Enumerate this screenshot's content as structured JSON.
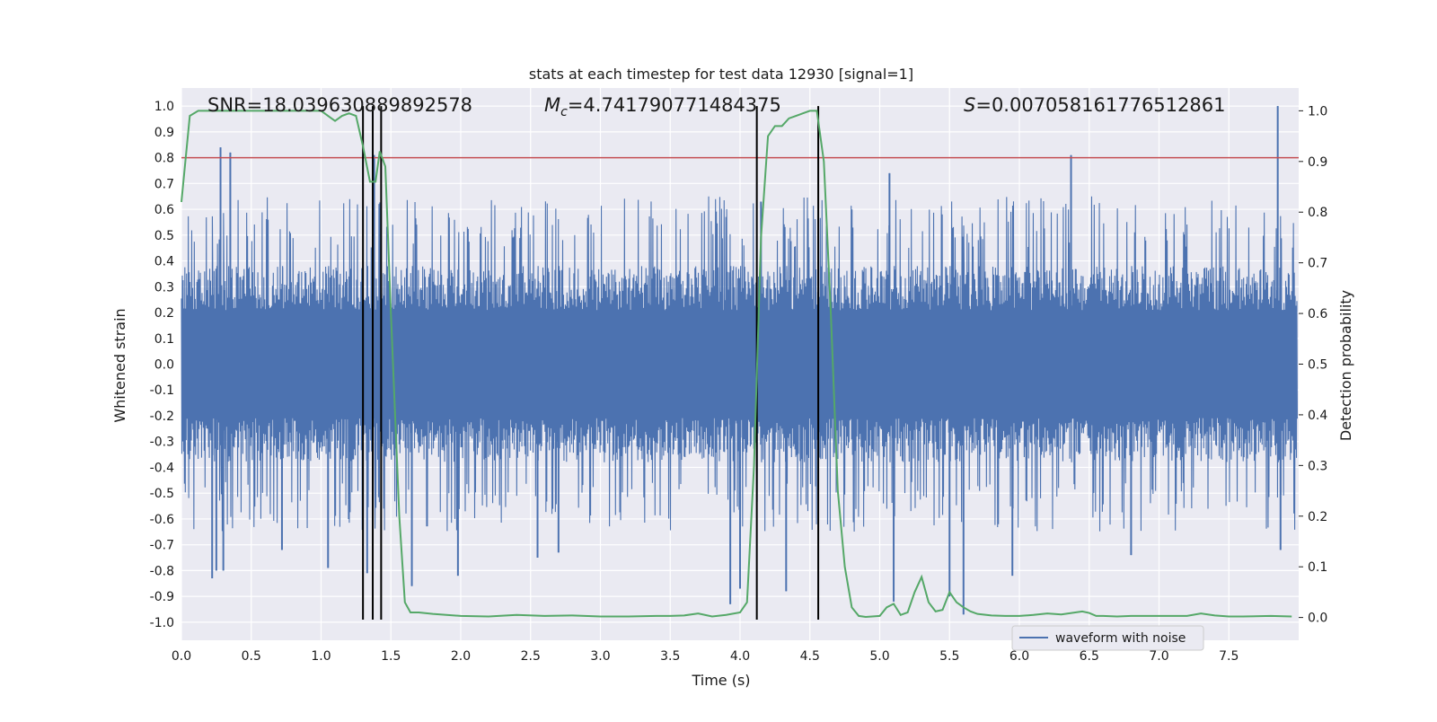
{
  "chart_data": {
    "type": "line",
    "title": "stats at each timestep for test data 12930 [signal=1]",
    "xlabel": "Time (s)",
    "ylabel_left": "Whitened strain",
    "ylabel_right": "Detection probability",
    "xlim": [
      0.0,
      8.0
    ],
    "ylim_left": [
      -1.07,
      1.07
    ],
    "ylim_right": [
      -0.045,
      1.045
    ],
    "xticks": [
      0.0,
      0.5,
      1.0,
      1.5,
      2.0,
      2.5,
      3.0,
      3.5,
      4.0,
      4.5,
      5.0,
      5.5,
      6.0,
      6.5,
      7.0,
      7.5
    ],
    "xtick_labels": [
      "0.0",
      "0.5",
      "1.0",
      "1.5",
      "2.0",
      "2.5",
      "3.0",
      "3.5",
      "4.0",
      "4.5",
      "5.0",
      "5.5",
      "6.0",
      "6.5",
      "7.0",
      "7.5"
    ],
    "yticks_left": [
      1.0,
      0.9,
      0.8,
      0.7,
      0.6,
      0.5,
      0.4,
      0.3,
      0.2,
      0.1,
      0.0,
      -0.1,
      -0.2,
      -0.3,
      -0.4,
      -0.5,
      -0.6,
      -0.7,
      -0.8,
      -0.9,
      -1.0
    ],
    "ytick_labels_left": [
      "1.0",
      "0.9",
      "0.8",
      "0.7",
      "0.6",
      "0.5",
      "0.4",
      "0.3",
      "0.2",
      "0.1",
      "0.0",
      "-0.1",
      "-0.2",
      "-0.3",
      "-0.4",
      "-0.5",
      "-0.6",
      "-0.7",
      "-0.8",
      "-0.9",
      "-1.0"
    ],
    "yticks_right": [
      1.0,
      0.9,
      0.8,
      0.7,
      0.6,
      0.5,
      0.4,
      0.3,
      0.2,
      0.1,
      0.0
    ],
    "ytick_labels_right": [
      "1.0",
      "0.9",
      "0.8",
      "0.7",
      "0.6",
      "0.5",
      "0.4",
      "0.3",
      "0.2",
      "0.1",
      "0.0"
    ],
    "grid": true,
    "legend": {
      "entries": [
        "waveform with noise"
      ],
      "placement": "lower-right"
    },
    "annotations": {
      "snr": "SNR=18.039630889892578",
      "mc_symbol": "M",
      "mc_subscript": "c",
      "mc_value": "=4.741790771484375",
      "s_symbol": "S",
      "s_value": "=0.007058161776512861"
    },
    "threshold_line": {
      "axis": "left",
      "y": 0.8,
      "color": "#c44e52"
    },
    "vertical_lines_x": [
      1.3,
      1.37,
      1.43,
      4.12,
      4.56
    ],
    "series": [
      {
        "name": "waveform with noise",
        "axis": "left",
        "color": "#4c72b0",
        "kind": "noise-waveform",
        "typical_envelope": 0.38,
        "spikes": [
          {
            "x": 0.22,
            "y": -0.83
          },
          {
            "x": 0.25,
            "y": -0.8
          },
          {
            "x": 0.28,
            "y": 0.84
          },
          {
            "x": 0.3,
            "y": -0.8
          },
          {
            "x": 0.35,
            "y": 0.82
          },
          {
            "x": 0.72,
            "y": -0.72
          },
          {
            "x": 1.05,
            "y": -0.79
          },
          {
            "x": 1.33,
            "y": -0.81
          },
          {
            "x": 1.38,
            "y": 0.81
          },
          {
            "x": 1.65,
            "y": -0.86
          },
          {
            "x": 1.98,
            "y": -0.82
          },
          {
            "x": 2.55,
            "y": -0.75
          },
          {
            "x": 2.7,
            "y": -0.73
          },
          {
            "x": 3.93,
            "y": -0.93
          },
          {
            "x": 4.0,
            "y": -0.87
          },
          {
            "x": 4.15,
            "y": 0.63
          },
          {
            "x": 4.33,
            "y": -0.88
          },
          {
            "x": 5.07,
            "y": 0.74
          },
          {
            "x": 5.1,
            "y": -0.92
          },
          {
            "x": 5.5,
            "y": -0.9
          },
          {
            "x": 5.6,
            "y": -0.97
          },
          {
            "x": 5.95,
            "y": -0.82
          },
          {
            "x": 6.37,
            "y": 0.81
          },
          {
            "x": 6.8,
            "y": -0.74
          },
          {
            "x": 7.85,
            "y": 1.0
          },
          {
            "x": 7.87,
            "y": -0.72
          }
        ]
      },
      {
        "name": "",
        "axis": "right",
        "color": "#55a868",
        "x": [
          0.0,
          0.06,
          0.12,
          0.2,
          0.3,
          0.5,
          0.7,
          0.9,
          1.0,
          1.05,
          1.1,
          1.15,
          1.2,
          1.25,
          1.3,
          1.35,
          1.39,
          1.42,
          1.46,
          1.5,
          1.56,
          1.6,
          1.64,
          1.7,
          1.8,
          2.0,
          2.2,
          2.4,
          2.6,
          2.8,
          3.0,
          3.2,
          3.4,
          3.5,
          3.6,
          3.7,
          3.8,
          3.9,
          4.0,
          4.05,
          4.1,
          4.15,
          4.2,
          4.25,
          4.3,
          4.35,
          4.4,
          4.45,
          4.5,
          4.55,
          4.6,
          4.65,
          4.7,
          4.75,
          4.8,
          4.85,
          4.9,
          5.0,
          5.05,
          5.1,
          5.15,
          5.2,
          5.25,
          5.3,
          5.35,
          5.4,
          5.45,
          5.5,
          5.55,
          5.6,
          5.65,
          5.7,
          5.8,
          5.9,
          6.0,
          6.1,
          6.2,
          6.3,
          6.4,
          6.45,
          6.5,
          6.55,
          6.6,
          6.7,
          6.8,
          7.0,
          7.2,
          7.3,
          7.4,
          7.5,
          7.6,
          7.8,
          7.95
        ],
        "y": [
          0.82,
          0.99,
          1.0,
          1.0,
          1.0,
          1.0,
          1.0,
          1.0,
          1.0,
          0.99,
          0.98,
          0.99,
          0.995,
          0.99,
          0.93,
          0.86,
          0.86,
          0.92,
          0.89,
          0.6,
          0.2,
          0.03,
          0.01,
          0.01,
          0.007,
          0.003,
          0.002,
          0.005,
          0.003,
          0.004,
          0.002,
          0.002,
          0.003,
          0.003,
          0.004,
          0.008,
          0.002,
          0.005,
          0.01,
          0.03,
          0.3,
          0.75,
          0.95,
          0.97,
          0.97,
          0.985,
          0.99,
          0.995,
          1.0,
          1.0,
          0.9,
          0.6,
          0.25,
          0.1,
          0.02,
          0.003,
          0.001,
          0.003,
          0.02,
          0.027,
          0.005,
          0.01,
          0.05,
          0.08,
          0.03,
          0.012,
          0.015,
          0.05,
          0.03,
          0.02,
          0.012,
          0.007,
          0.004,
          0.003,
          0.003,
          0.005,
          0.008,
          0.006,
          0.01,
          0.012,
          0.009,
          0.003,
          0.003,
          0.002,
          0.003,
          0.003,
          0.003,
          0.008,
          0.004,
          0.002,
          0.002,
          0.003,
          0.002
        ]
      }
    ]
  }
}
